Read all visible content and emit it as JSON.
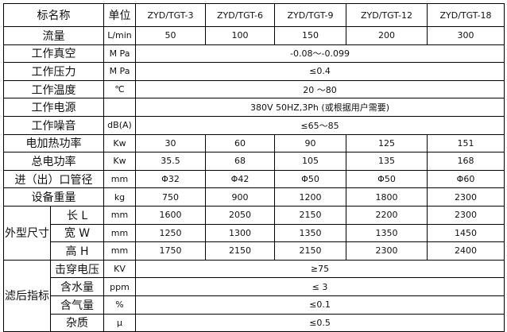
{
  "header": {
    "name": "标名称",
    "unit": "单位",
    "models": [
      "ZYD/TGT-3",
      "ZYD/TGT-6",
      "ZYD/TGT-9",
      "ZYD/TGT-12",
      "ZYD/TGT-18"
    ]
  },
  "rows_per_model": [
    {
      "label": "流量",
      "unit": "L/min",
      "values": [
        "50",
        "100",
        "150",
        "200",
        "300"
      ]
    }
  ],
  "rows_shared": [
    {
      "label": "工作真空",
      "unit": "M Pa",
      "value": "-0.08～-0.099"
    },
    {
      "label": "工作压力",
      "unit": "M Pa",
      "value": "≤0.4"
    },
    {
      "label": "工作温度",
      "unit": "℃",
      "value": "20 ～80"
    },
    {
      "label": "工作电源",
      "unit": "",
      "value": "380V 50HZ,3Ph (或根据用户需要)"
    },
    {
      "label": "工作噪音",
      "unit": "dB(A)",
      "value": "≤65～85"
    }
  ],
  "rows_per_model2": [
    {
      "label": "电加热功率",
      "unit": "Kw",
      "values": [
        "30",
        "60",
        "90",
        "125",
        "151"
      ]
    },
    {
      "label": "总电功率",
      "unit": "Kw",
      "values": [
        "35.5",
        "68",
        "105",
        "135",
        "168"
      ]
    },
    {
      "label": "进（出）口管径",
      "unit": "mm",
      "values": [
        "Φ32",
        "Φ42",
        "Φ50",
        "Φ50",
        "Φ60"
      ]
    },
    {
      "label": "设备重量",
      "unit": "kg",
      "values": [
        "750",
        "900",
        "1200",
        "1800",
        "2300"
      ]
    }
  ],
  "dimensions": {
    "group": "外型尺寸",
    "rows": [
      {
        "label": "长 L",
        "unit": "mm",
        "values": [
          "1600",
          "2050",
          "2150",
          "2200",
          "2300"
        ]
      },
      {
        "label": "宽 W",
        "unit": "mm",
        "values": [
          "1250",
          "1300",
          "1350",
          "1350",
          "1450"
        ]
      },
      {
        "label": "高 H",
        "unit": "mm",
        "values": [
          "1750",
          "2150",
          "2150",
          "2300",
          "2400"
        ]
      }
    ]
  },
  "filtered": {
    "group": "滤后指标",
    "rows": [
      {
        "label": "击穿电压",
        "unit": "KV",
        "value": "≥75"
      },
      {
        "label": "含水量",
        "unit": "ppm",
        "value": "≤ 3"
      },
      {
        "label": "含气量",
        "unit": "%",
        "value": "≤0.1"
      },
      {
        "label": "杂质",
        "unit": "μ",
        "value": "≤0.5"
      }
    ]
  }
}
